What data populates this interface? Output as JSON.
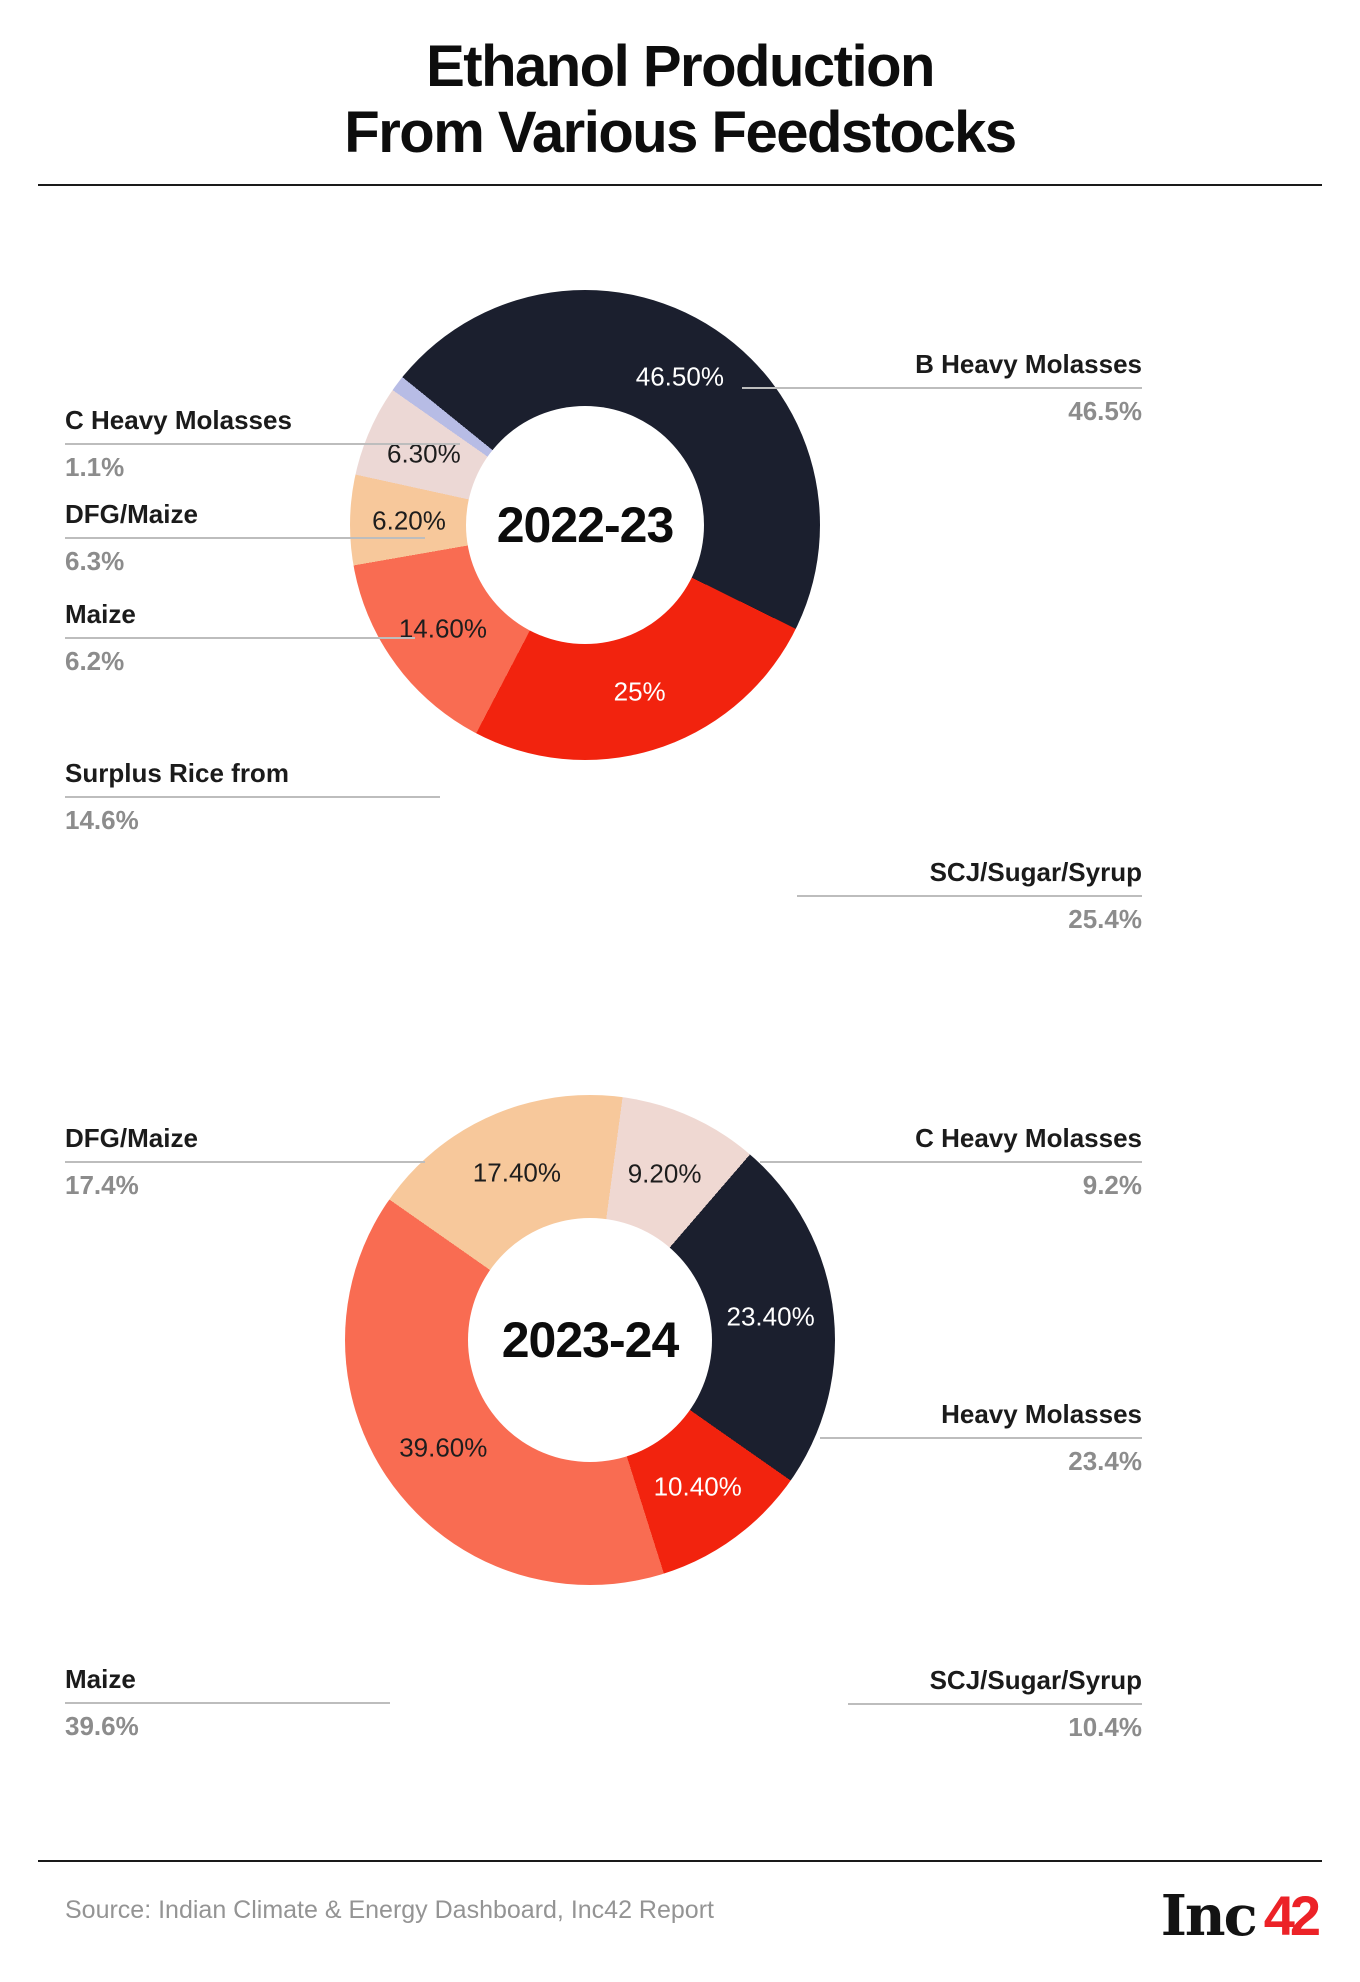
{
  "title": {
    "line1": "Ethanol Production",
    "line2": "From Various Feedstocks"
  },
  "source": "Source: Indian Climate & Energy Dashboard, Inc42 Report",
  "logo": {
    "text_black": "Inc",
    "text_red": "42"
  },
  "colors": {
    "dark_navy": "#1B1F2E",
    "red": "#F2230E",
    "salmon": "#F96C52",
    "peach": "#F7C89B",
    "pale_pink": "#ECD8D5",
    "blush_pink": "#EFD8D2",
    "lavender": "#B7BCE5",
    "label_dark": "#1D1D1D",
    "label_light": "#FFFFFF"
  },
  "chart_data": [
    {
      "type": "pie",
      "subtype": "donut",
      "title": "2022-23",
      "center_label": "2022-23",
      "start_angle_deg": -51,
      "direction": "clockwise",
      "legend": "none",
      "slices": [
        {
          "label": "B Heavy Molasses",
          "value": 46.5,
          "display_outer": "46.5%",
          "display_inner": "46.50%",
          "color_key": "dark_navy",
          "inner_text": "light",
          "callout_side": "right"
        },
        {
          "label": "SCJ/Sugar/Syrup",
          "value": 25.4,
          "display_outer": "25.4%",
          "display_inner": "25%",
          "color_key": "red",
          "inner_text": "light",
          "callout_side": "right"
        },
        {
          "label": "Surplus Rice from",
          "value": 14.6,
          "display_outer": "14.6%",
          "display_inner": "14.60%",
          "color_key": "salmon",
          "inner_text": "dark",
          "callout_side": "left"
        },
        {
          "label": "Maize",
          "value": 6.2,
          "display_outer": "6.2%",
          "display_inner": "6.20%",
          "color_key": "peach",
          "inner_text": "dark",
          "callout_side": "left"
        },
        {
          "label": "DFG/Maize",
          "value": 6.3,
          "display_outer": "6.3%",
          "display_inner": "6.30%",
          "color_key": "pale_pink",
          "inner_text": "dark",
          "callout_side": "left"
        },
        {
          "label": "C Heavy Molasses",
          "value": 1.1,
          "display_outer": "1.1%",
          "display_inner": null,
          "color_key": "lavender",
          "inner_text": "dark",
          "callout_side": "left"
        }
      ]
    },
    {
      "type": "pie",
      "subtype": "donut",
      "title": "2023-24",
      "center_label": "2023-24",
      "start_angle_deg": -55,
      "direction": "clockwise",
      "legend": "none",
      "slices": [
        {
          "label": "DFG/Maize",
          "value": 17.4,
          "display_outer": "17.4%",
          "display_inner": "17.40%",
          "color_key": "peach",
          "inner_text": "dark",
          "callout_side": "left"
        },
        {
          "label": "C Heavy Molasses",
          "value": 9.2,
          "display_outer": "9.2%",
          "display_inner": "9.20%",
          "color_key": "blush_pink",
          "inner_text": "dark",
          "callout_side": "right"
        },
        {
          "label": "Heavy Molasses",
          "value": 23.4,
          "display_outer": "23.4%",
          "display_inner": "23.40%",
          "color_key": "dark_navy",
          "inner_text": "light",
          "callout_side": "right"
        },
        {
          "label": "SCJ/Sugar/Syrup",
          "value": 10.4,
          "display_outer": "10.4%",
          "display_inner": "10.40%",
          "color_key": "red",
          "inner_text": "light",
          "callout_side": "right"
        },
        {
          "label": "Maize",
          "value": 39.6,
          "display_outer": "39.6%",
          "display_inner": "39.60%",
          "color_key": "salmon",
          "inner_text": "dark",
          "callout_side": "left"
        }
      ]
    }
  ]
}
